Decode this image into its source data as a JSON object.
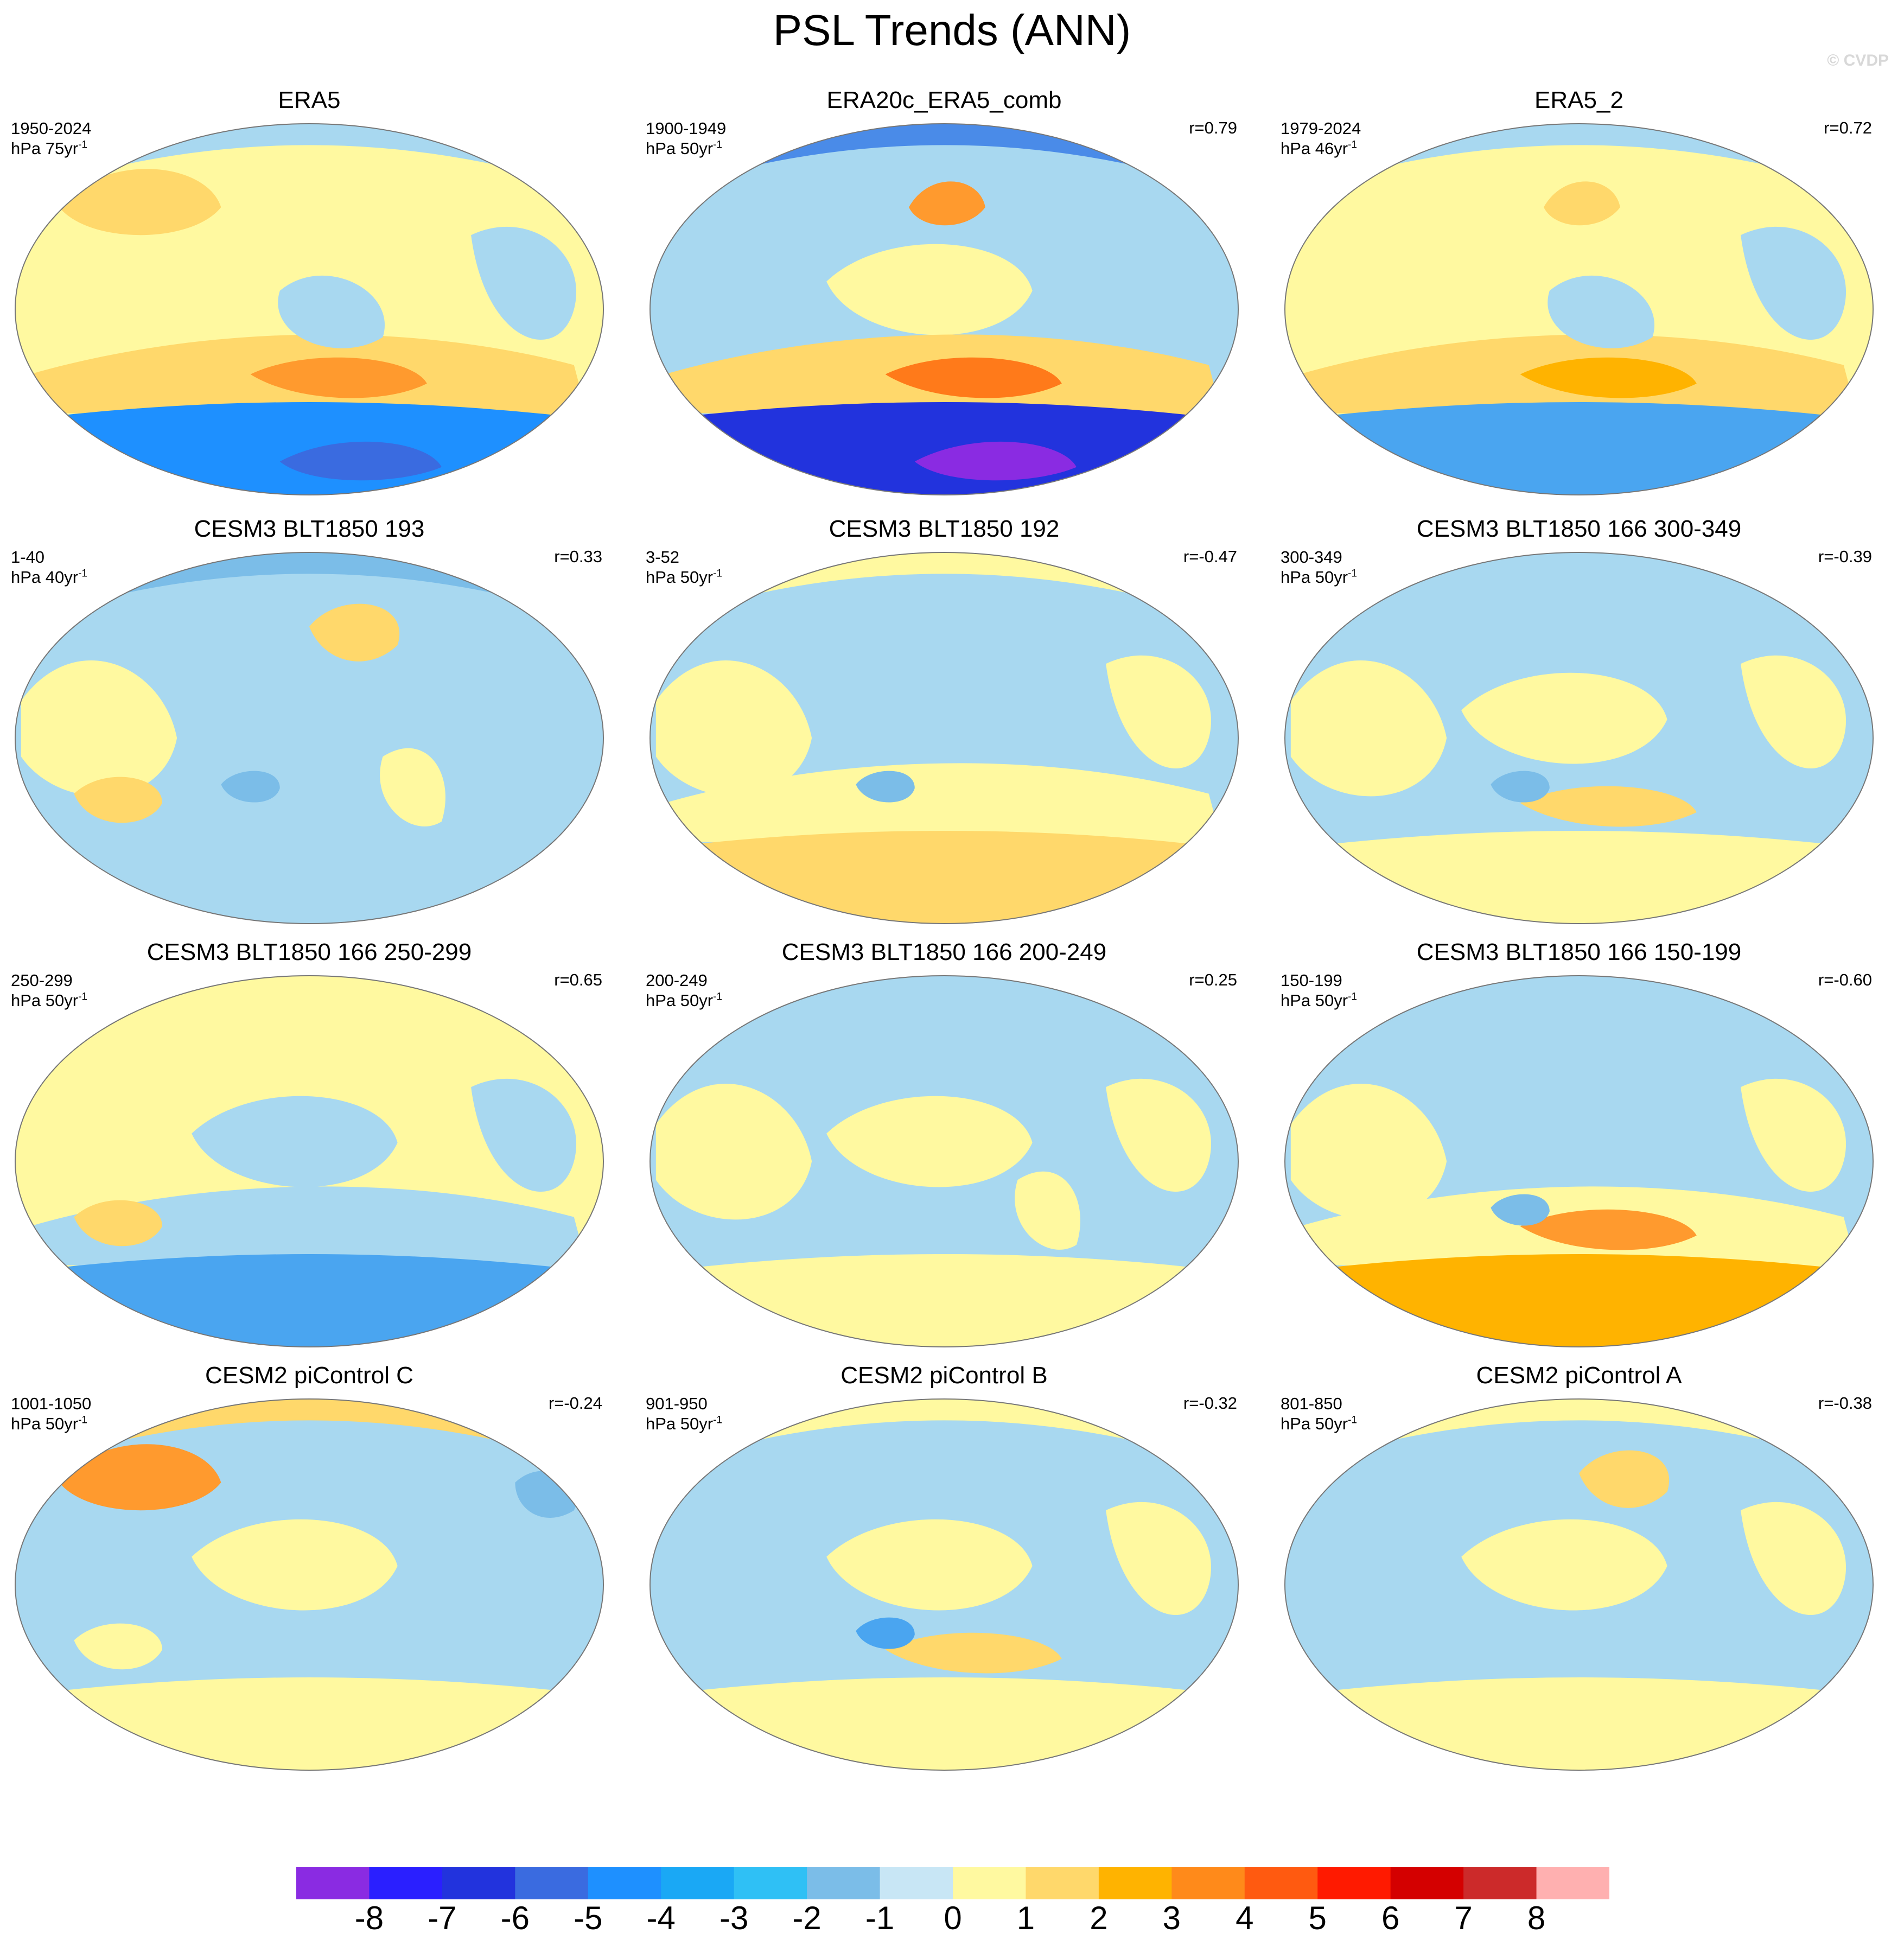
{
  "title": "PSL Trends (ANN)",
  "watermark": "© CVDP",
  "panels": [
    {
      "title": "ERA5",
      "period": "1950-2024",
      "units": "hPa 75yr",
      "corr": "",
      "background_color": "#fff9a0",
      "blobs": [
        {
          "color": "#a8d8f0",
          "shape": "band-top"
        },
        {
          "color": "#ffd86b",
          "shape": "band-south-mid"
        },
        {
          "color": "#1e90ff",
          "shape": "band-south"
        },
        {
          "color": "#3a6be0",
          "shape": "south-core"
        },
        {
          "color": "#ffd86b",
          "shape": "asia-blob"
        },
        {
          "color": "#ff9a2e",
          "shape": "south-core-warm"
        },
        {
          "color": "#a8d8f0",
          "shape": "pacific-east"
        },
        {
          "color": "#a8d8f0",
          "shape": "atlantic"
        }
      ]
    },
    {
      "title": "ERA20c_ERA5_comb",
      "period": "1900-1949",
      "units": "hPa 50yr",
      "corr": "r=0.79",
      "background_color": "#a8d8f0",
      "blobs": [
        {
          "color": "#4a8be8",
          "shape": "band-top"
        },
        {
          "color": "#fff9a0",
          "shape": "pacific-mid"
        },
        {
          "color": "#ff9a2e",
          "shape": "north-pacific-core"
        },
        {
          "color": "#ffd86b",
          "shape": "band-south-mid"
        },
        {
          "color": "#ff7a1a",
          "shape": "south-core-warm"
        },
        {
          "color": "#2233dd",
          "shape": "band-south"
        },
        {
          "color": "#8a2be2",
          "shape": "south-core"
        }
      ]
    },
    {
      "title": "ERA5_2",
      "period": "1979-2024",
      "units": "hPa 46yr",
      "corr": "r=0.72",
      "background_color": "#fff9a0",
      "blobs": [
        {
          "color": "#a8d8f0",
          "shape": "band-top"
        },
        {
          "color": "#ffd86b",
          "shape": "north-pacific-core"
        },
        {
          "color": "#ffd86b",
          "shape": "band-south-mid"
        },
        {
          "color": "#ffb300",
          "shape": "south-core-warm"
        },
        {
          "color": "#4aa5f0",
          "shape": "band-south"
        },
        {
          "color": "#a8d8f0",
          "shape": "pacific-east"
        },
        {
          "color": "#a8d8f0",
          "shape": "atlantic"
        }
      ]
    },
    {
      "title": "CESM3 BLT1850 193",
      "period": "1-40",
      "units": "hPa 40yr",
      "corr": "r=0.33",
      "background_color": "#a8d8f0",
      "blobs": [
        {
          "color": "#7bbde8",
          "shape": "band-top"
        },
        {
          "color": "#ffd86b",
          "shape": "na-blob"
        },
        {
          "color": "#fff9a0",
          "shape": "west-blob"
        },
        {
          "color": "#ffd86b",
          "shape": "west-south"
        },
        {
          "color": "#fff9a0",
          "shape": "south-amer"
        },
        {
          "color": "#7bbde8",
          "shape": "pacific-spot"
        }
      ]
    },
    {
      "title": "CESM3 BLT1850 192",
      "period": "3-52",
      "units": "hPa 50yr",
      "corr": "r=-0.47",
      "background_color": "#a8d8f0",
      "blobs": [
        {
          "color": "#fff9a0",
          "shape": "west-blob"
        },
        {
          "color": "#fff9a0",
          "shape": "band-top"
        },
        {
          "color": "#fff9a0",
          "shape": "atlantic"
        },
        {
          "color": "#ffd86b",
          "shape": "south-core-warm"
        },
        {
          "color": "#fff9a0",
          "shape": "band-south-mid"
        },
        {
          "color": "#ffd86b",
          "shape": "band-south"
        },
        {
          "color": "#7bbde8",
          "shape": "pacific-spot"
        }
      ]
    },
    {
      "title": "CESM3 BLT1850 166 300-349",
      "period": "300-349",
      "units": "hPa 50yr",
      "corr": "r=-0.39",
      "background_color": "#a8d8f0",
      "blobs": [
        {
          "color": "#fff9a0",
          "shape": "west-blob"
        },
        {
          "color": "#fff9a0",
          "shape": "atlantic"
        },
        {
          "color": "#fff9a0",
          "shape": "band-south"
        },
        {
          "color": "#ffd86b",
          "shape": "south-core-warm"
        },
        {
          "color": "#fff9a0",
          "shape": "pacific-mid"
        },
        {
          "color": "#7bbde8",
          "shape": "pacific-spot"
        }
      ]
    },
    {
      "title": "CESM3 BLT1850 166 250-299",
      "period": "250-299",
      "units": "hPa 50yr",
      "corr": "r=0.65",
      "background_color": "#fff9a0",
      "blobs": [
        {
          "color": "#a8d8f0",
          "shape": "pacific-mid"
        },
        {
          "color": "#a8d8f0",
          "shape": "band-south-mid"
        },
        {
          "color": "#4aa5f0",
          "shape": "band-south"
        },
        {
          "color": "#ffd86b",
          "shape": "west-south"
        },
        {
          "color": "#a8d8f0",
          "shape": "atlantic"
        }
      ]
    },
    {
      "title": "CESM3 BLT1850 166 200-249",
      "period": "200-249",
      "units": "hPa 50yr",
      "corr": "r=0.25",
      "background_color": "#a8d8f0",
      "blobs": [
        {
          "color": "#fff9a0",
          "shape": "west-blob"
        },
        {
          "color": "#fff9a0",
          "shape": "pacific-mid"
        },
        {
          "color": "#fff9a0",
          "shape": "south-amer"
        },
        {
          "color": "#fff9a0",
          "shape": "band-south"
        },
        {
          "color": "#fff9a0",
          "shape": "atlantic"
        }
      ]
    },
    {
      "title": "CESM3 BLT1850 166 150-199",
      "period": "150-199",
      "units": "hPa 50yr",
      "corr": "r=-0.60",
      "background_color": "#a8d8f0",
      "blobs": [
        {
          "color": "#fff9a0",
          "shape": "west-blob"
        },
        {
          "color": "#fff9a0",
          "shape": "atlantic"
        },
        {
          "color": "#fff9a0",
          "shape": "band-south-mid"
        },
        {
          "color": "#ffb300",
          "shape": "band-south"
        },
        {
          "color": "#ff9a2e",
          "shape": "south-core-warm"
        },
        {
          "color": "#7bbde8",
          "shape": "pacific-spot"
        }
      ]
    },
    {
      "title": "CESM2 piControl C",
      "period": "1001-1050",
      "units": "hPa 50yr",
      "corr": "r=-0.24",
      "background_color": "#a8d8f0",
      "blobs": [
        {
          "color": "#ffd86b",
          "shape": "band-top"
        },
        {
          "color": "#ff9a2e",
          "shape": "asia-blob"
        },
        {
          "color": "#fff9a0",
          "shape": "pacific-mid"
        },
        {
          "color": "#fff9a0",
          "shape": "band-south"
        },
        {
          "color": "#7bbde8",
          "shape": "atlantic-north"
        },
        {
          "color": "#fff9a0",
          "shape": "west-south"
        }
      ]
    },
    {
      "title": "CESM2 piControl B",
      "period": "901-950",
      "units": "hPa 50yr",
      "corr": "r=-0.32",
      "background_color": "#a8d8f0",
      "blobs": [
        {
          "color": "#fff9a0",
          "shape": "band-top"
        },
        {
          "color": "#fff9a0",
          "shape": "pacific-mid"
        },
        {
          "color": "#fff9a0",
          "shape": "band-south"
        },
        {
          "color": "#ffd86b",
          "shape": "south-core-warm"
        },
        {
          "color": "#4aa5f0",
          "shape": "pacific-spot"
        },
        {
          "color": "#fff9a0",
          "shape": "atlantic"
        }
      ]
    },
    {
      "title": "CESM2 piControl A",
      "period": "801-850",
      "units": "hPa 50yr",
      "corr": "r=-0.38",
      "background_color": "#a8d8f0",
      "blobs": [
        {
          "color": "#fff9a0",
          "shape": "band-top"
        },
        {
          "color": "#ffd86b",
          "shape": "na-blob"
        },
        {
          "color": "#fff9a0",
          "shape": "pacific-mid"
        },
        {
          "color": "#fff9a0",
          "shape": "band-south"
        },
        {
          "color": "#fff9a0",
          "shape": "atlantic"
        }
      ]
    }
  ],
  "colorbar": {
    "labels": [
      "-8",
      "-7",
      "-6",
      "-5",
      "-4",
      "-3",
      "-2",
      "-1",
      "0",
      "1",
      "2",
      "3",
      "4",
      "5",
      "6",
      "7",
      "8"
    ],
    "colors": [
      "#8a2be2",
      "#2a1fff",
      "#2233dd",
      "#3a6be0",
      "#1e90ff",
      "#1aa8f5",
      "#2fc0f5",
      "#7bbde8",
      "#c8e6f5",
      "#fff9a0",
      "#ffd86b",
      "#ffb300",
      "#ff8a1a",
      "#ff5a10",
      "#ff1a00",
      "#d40000",
      "#cc2a2a",
      "#ffb0b0"
    ]
  }
}
